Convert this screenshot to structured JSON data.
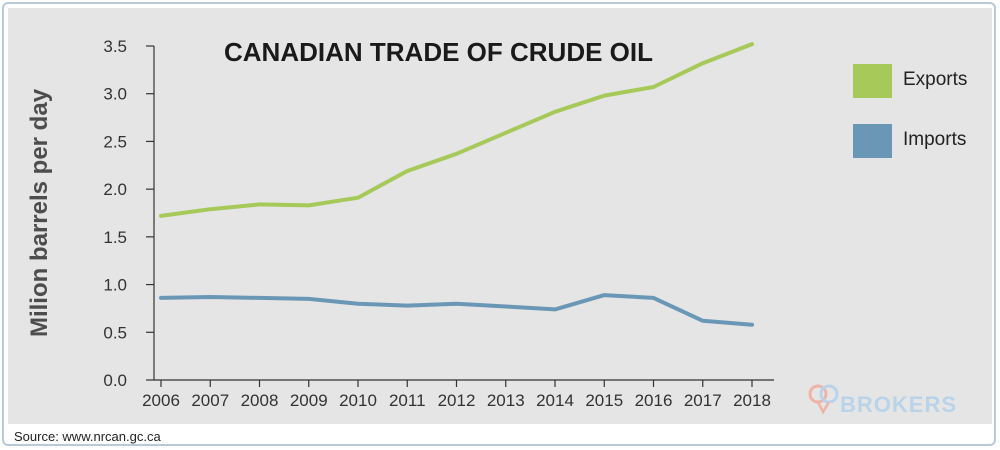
{
  "source_note": "Source: www.nrcan.gc.ca",
  "watermark": "BROKERS",
  "colors": {
    "exports": "#a6c95a",
    "imports": "#6b97b7",
    "background": "#e5e5e5",
    "axis": "#333333"
  },
  "chart_data": {
    "type": "line",
    "title": "CANADIAN TRADE OF CRUDE OIL",
    "xlabel": "",
    "ylabel": "Milion barrels per day",
    "categories": [
      "2006",
      "2007",
      "2008",
      "2009",
      "2010",
      "2011",
      "2012",
      "2013",
      "2014",
      "2015",
      "2016",
      "2017",
      "2018"
    ],
    "yticks": [
      "0.0",
      "0.5",
      "1.0",
      "1.5",
      "2.0",
      "2.5",
      "3.0",
      "3.5"
    ],
    "ylim": [
      0,
      3.5
    ],
    "legend_position": "right",
    "grid": false,
    "series": [
      {
        "name": "Exports",
        "color": "#a6c95a",
        "values": [
          1.72,
          1.79,
          1.84,
          1.83,
          1.91,
          2.19,
          2.37,
          2.59,
          2.81,
          2.98,
          3.07,
          3.32,
          3.52
        ]
      },
      {
        "name": "Imports",
        "color": "#6b97b7",
        "values": [
          0.86,
          0.87,
          0.86,
          0.85,
          0.8,
          0.78,
          0.8,
          0.77,
          0.74,
          0.89,
          0.86,
          0.62,
          0.58
        ]
      }
    ]
  }
}
